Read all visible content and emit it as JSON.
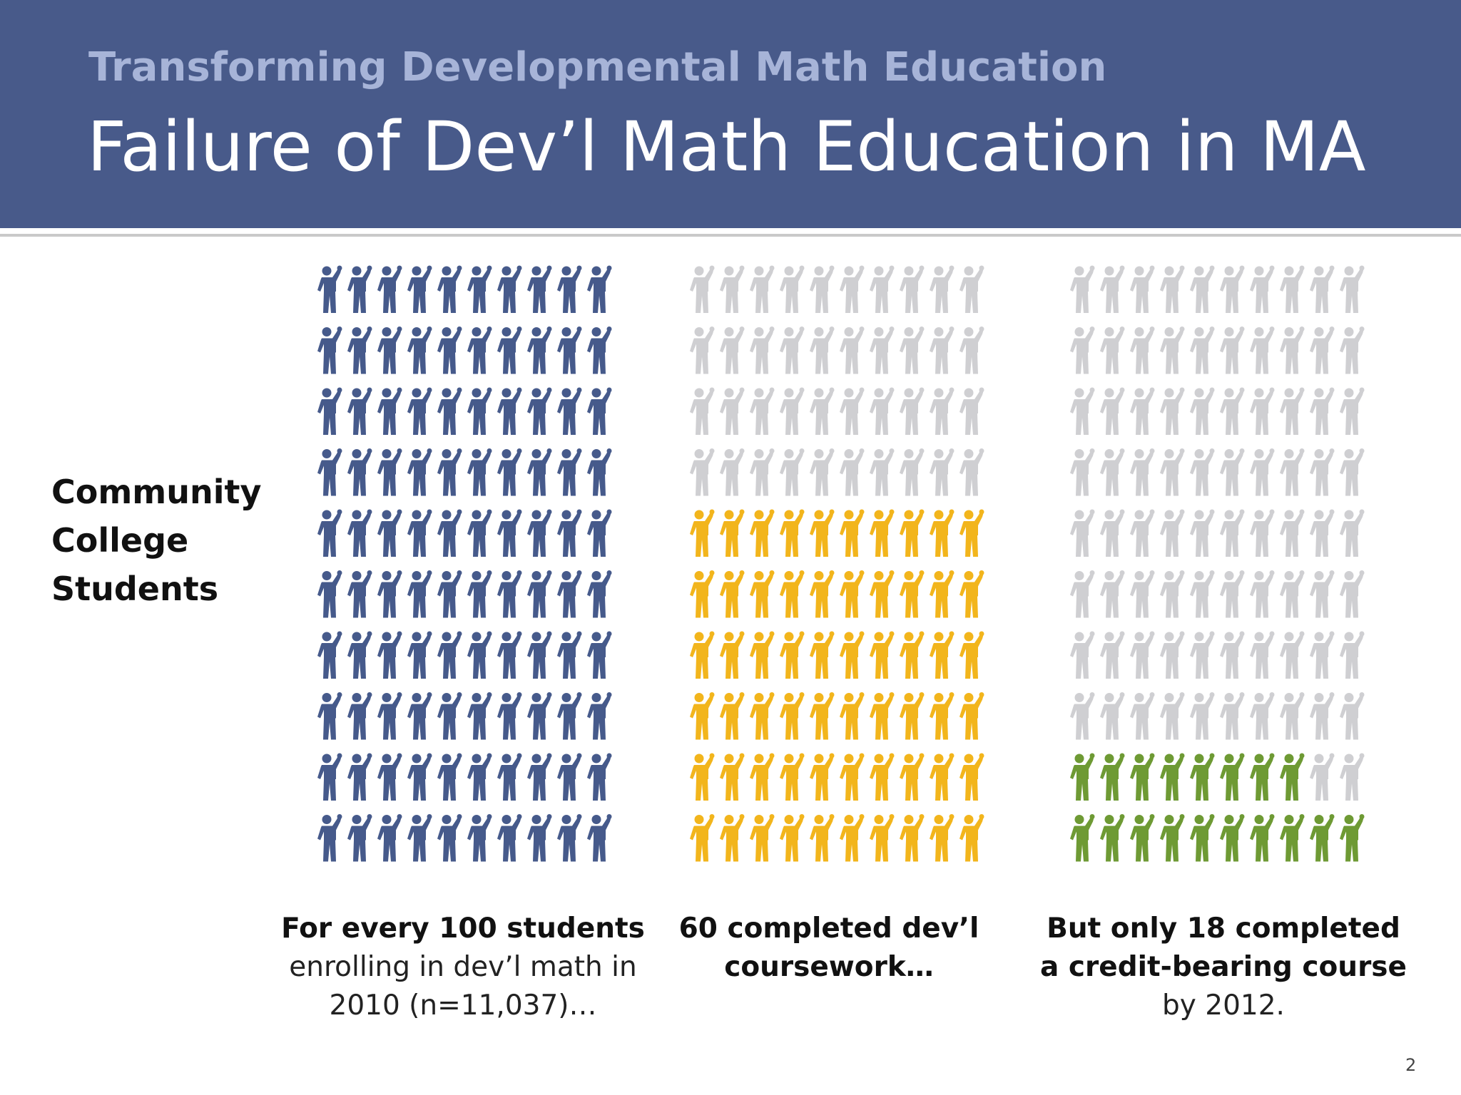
{
  "header": {
    "subtitle": "Transforming Developmental Math Education",
    "title": "Failure of Dev’l Math Education in MA"
  },
  "chart_data": {
    "type": "pictograph",
    "row_label": "Community College Students",
    "total": 100,
    "empty_color": "#cfcfd2",
    "panels": [
      {
        "value": 100,
        "color": "#465a8b",
        "caption_bold": "For every 100 students",
        "caption": "enrolling in dev’l math in 2010 (n=11,037)…"
      },
      {
        "value": 60,
        "color": "#f2b51c",
        "caption_bold": "60 completed dev’l coursework…",
        "caption": null
      },
      {
        "value": 18,
        "color": "#6e9a34",
        "caption_bold": "But only 18 completed a credit-bearing course",
        "caption": "by 2012."
      }
    ]
  },
  "footer": {
    "page_number": "2"
  }
}
